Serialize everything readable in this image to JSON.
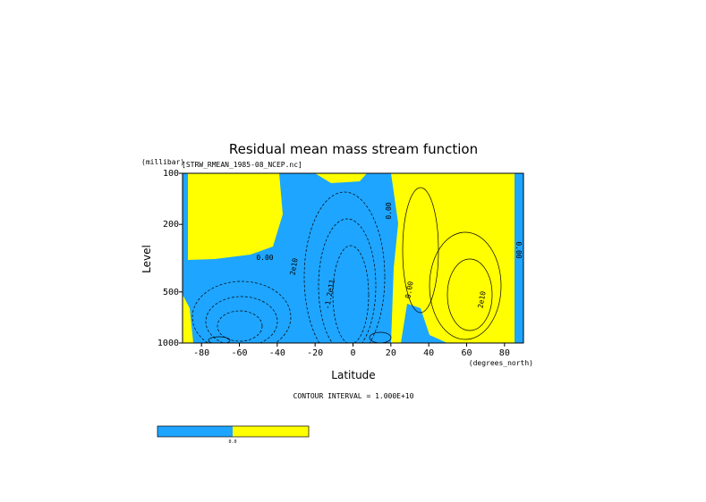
{
  "chart_data": {
    "type": "contour",
    "title": "Residual mean mass stream function",
    "subtitle": "[STRW_RMEAN_1985-08_NCEP.nc]",
    "y_label": "Level",
    "y_unit": "(millibar)",
    "x_label": "Latitude",
    "x_unit": "(degrees_north)",
    "xlim": [
      -90,
      90
    ],
    "xticks": [
      -80,
      -60,
      -40,
      -20,
      0,
      20,
      40,
      60,
      80
    ],
    "ylim": [
      1000,
      100
    ],
    "yticks": [
      100,
      200,
      500,
      1000
    ],
    "y_log": true,
    "contour_interval": "CONTOUR INTERVAL = 1.000E+10",
    "contour_labels": [
      "0.00",
      "2e10",
      "-1.2e11",
      "0.00",
      "0.00",
      "2e10",
      "0.00"
    ],
    "colors": {
      "negative": "#1ea5ff",
      "positive": "#ffff00"
    },
    "colorbar_labels": [
      "0.0"
    ]
  }
}
